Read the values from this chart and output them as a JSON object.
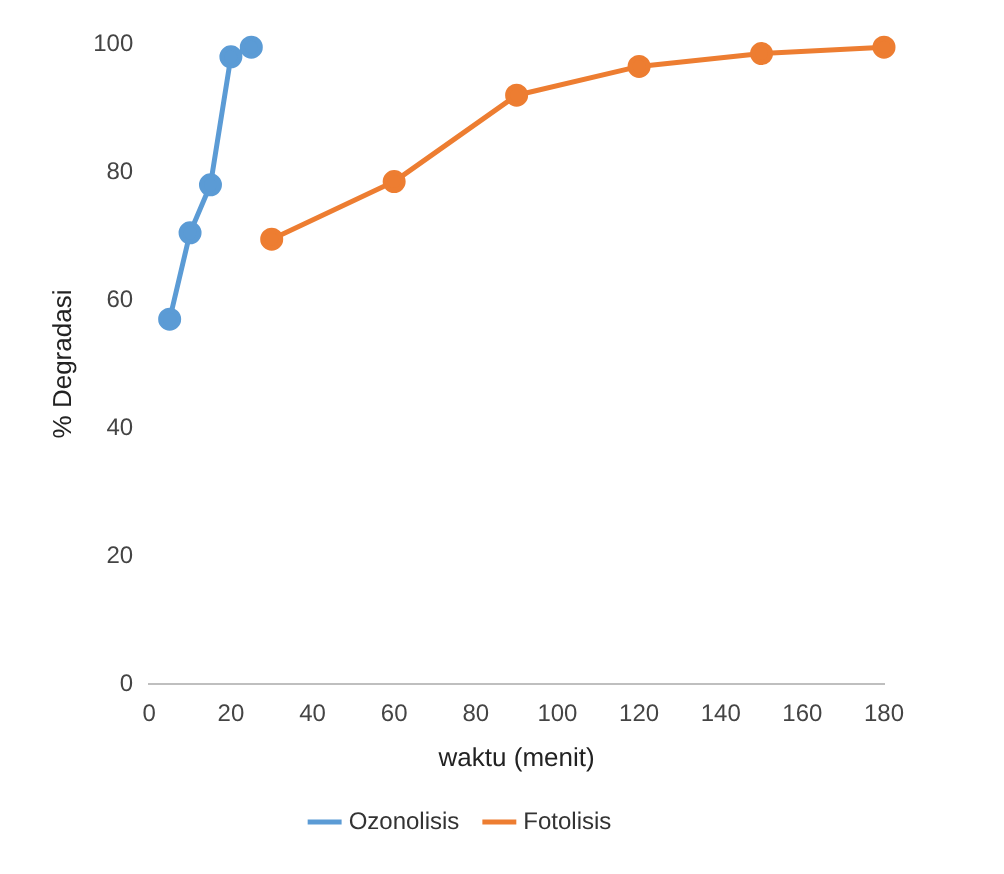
{
  "chart_data": {
    "type": "line",
    "xlabel": "waktu (menit)",
    "ylabel": "% Degradasi",
    "xlim": [
      0,
      180
    ],
    "xticks": [
      0,
      20,
      40,
      60,
      80,
      100,
      120,
      140,
      160,
      180
    ],
    "ylim": [
      0,
      100
    ],
    "yticks": [
      0,
      20,
      40,
      60,
      80,
      100
    ],
    "grid": false,
    "legend": "bottom",
    "marker": "circle",
    "line_style": "solid",
    "series": [
      {
        "name": "Ozonolisis",
        "color": "#5b9bd5",
        "x": [
          5,
          10,
          15,
          20,
          25
        ],
        "values": [
          57,
          70.5,
          78,
          98,
          99.5
        ]
      },
      {
        "name": "Fotolisis",
        "color": "#ed7d31",
        "x": [
          30,
          60,
          90,
          120,
          150,
          180
        ],
        "values": [
          69.5,
          78.5,
          92,
          96.5,
          98.5,
          99.5
        ]
      }
    ]
  }
}
